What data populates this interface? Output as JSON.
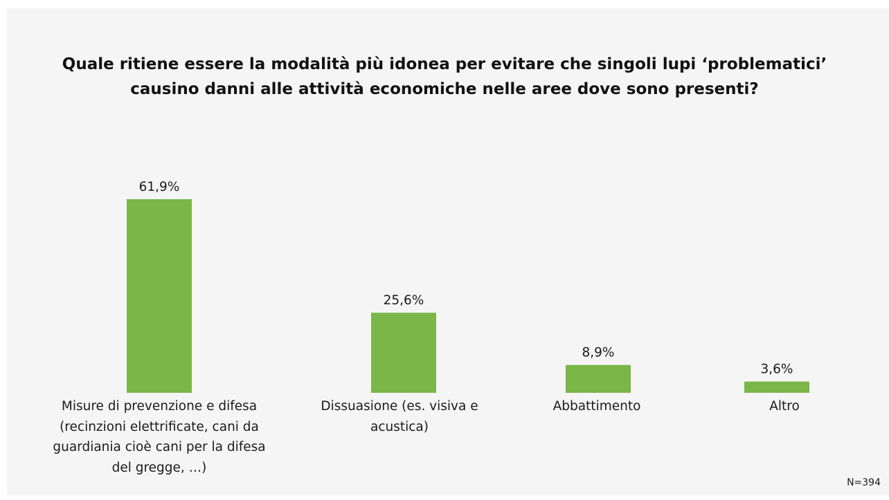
{
  "chart_data": {
    "type": "bar",
    "title_lines": [
      "Quale ritiene essere la modalità più idonea per evitare che singoli lupi ‘problematici’",
      "causino danni alle attività economiche nelle aree dove sono presenti?"
    ],
    "categories": [
      "Misure di prevenzione e difesa (recinzioni elettrificate, cani da guardiania cioè cani per la difesa del gregge, …)",
      "Dissuasione (es. visiva e acustica)",
      "Abbattimento",
      "Altro"
    ],
    "values": [
      61.9,
      25.6,
      8.9,
      3.6
    ],
    "value_labels": [
      "61,9%",
      "25,6%",
      "8,9%",
      "3,6%"
    ],
    "unit": "%",
    "bar_color": "#7ab648",
    "grid": false,
    "legend": "none",
    "ylim": [
      0,
      61.9
    ],
    "note": "N=394"
  }
}
